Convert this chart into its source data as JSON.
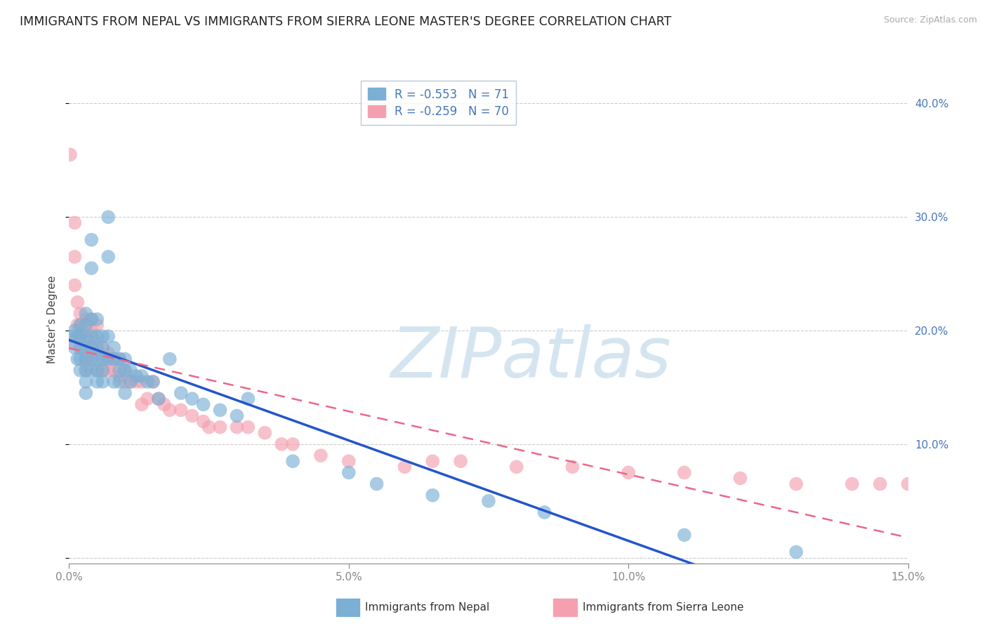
{
  "title": "IMMIGRANTS FROM NEPAL VS IMMIGRANTS FROM SIERRA LEONE MASTER'S DEGREE CORRELATION CHART",
  "source": "Source: ZipAtlas.com",
  "ylabel": "Master's Degree",
  "legend_nepal": "Immigrants from Nepal",
  "legend_sierra": "Immigrants from Sierra Leone",
  "R_nepal": -0.553,
  "N_nepal": 71,
  "R_sierra": -0.259,
  "N_sierra": 70,
  "xlim": [
    0.0,
    0.15
  ],
  "ylim": [
    -0.005,
    0.425
  ],
  "yticks": [
    0.0,
    0.1,
    0.2,
    0.3,
    0.4
  ],
  "ytick_labels": [
    "",
    "10.0%",
    "20.0%",
    "30.0%",
    "40.0%"
  ],
  "xticks": [
    0.0,
    0.05,
    0.1,
    0.15
  ],
  "xtick_labels": [
    "0.0%",
    "5.0%",
    "10.0%",
    "15.0%"
  ],
  "color_nepal": "#7BAFD4",
  "color_sierra": "#F4A0B0",
  "color_trendline_nepal": "#2255CC",
  "color_trendline_sierra": "#EE6688",
  "watermark": "ZIPatlas",
  "watermark_color": "#D5E5F0",
  "title_fontsize": 12.5,
  "axis_label_fontsize": 11,
  "tick_fontsize": 11,
  "nepal_x": [
    0.0005,
    0.001,
    0.001,
    0.0015,
    0.0015,
    0.002,
    0.002,
    0.002,
    0.002,
    0.002,
    0.003,
    0.003,
    0.003,
    0.003,
    0.003,
    0.003,
    0.003,
    0.003,
    0.004,
    0.004,
    0.004,
    0.004,
    0.004,
    0.004,
    0.004,
    0.005,
    0.005,
    0.005,
    0.005,
    0.005,
    0.005,
    0.006,
    0.006,
    0.006,
    0.006,
    0.006,
    0.007,
    0.007,
    0.007,
    0.007,
    0.008,
    0.008,
    0.008,
    0.009,
    0.009,
    0.009,
    0.01,
    0.01,
    0.01,
    0.011,
    0.011,
    0.012,
    0.013,
    0.014,
    0.015,
    0.016,
    0.018,
    0.02,
    0.022,
    0.024,
    0.027,
    0.03,
    0.032,
    0.04,
    0.05,
    0.055,
    0.065,
    0.075,
    0.085,
    0.11,
    0.13
  ],
  "nepal_y": [
    0.195,
    0.2,
    0.185,
    0.195,
    0.175,
    0.205,
    0.195,
    0.185,
    0.175,
    0.165,
    0.215,
    0.205,
    0.195,
    0.185,
    0.175,
    0.165,
    0.155,
    0.145,
    0.28,
    0.255,
    0.21,
    0.195,
    0.185,
    0.175,
    0.165,
    0.21,
    0.195,
    0.185,
    0.175,
    0.165,
    0.155,
    0.195,
    0.185,
    0.175,
    0.165,
    0.155,
    0.3,
    0.265,
    0.195,
    0.175,
    0.185,
    0.175,
    0.155,
    0.175,
    0.165,
    0.155,
    0.175,
    0.165,
    0.145,
    0.165,
    0.155,
    0.16,
    0.16,
    0.155,
    0.155,
    0.14,
    0.175,
    0.145,
    0.14,
    0.135,
    0.13,
    0.125,
    0.14,
    0.085,
    0.075,
    0.065,
    0.055,
    0.05,
    0.04,
    0.02,
    0.005
  ],
  "sierra_x": [
    0.0002,
    0.0005,
    0.001,
    0.001,
    0.001,
    0.0015,
    0.0015,
    0.002,
    0.002,
    0.002,
    0.002,
    0.003,
    0.003,
    0.003,
    0.003,
    0.003,
    0.003,
    0.004,
    0.004,
    0.004,
    0.004,
    0.005,
    0.005,
    0.005,
    0.005,
    0.006,
    0.006,
    0.006,
    0.007,
    0.007,
    0.007,
    0.008,
    0.008,
    0.009,
    0.009,
    0.01,
    0.01,
    0.011,
    0.012,
    0.013,
    0.013,
    0.014,
    0.015,
    0.016,
    0.017,
    0.018,
    0.02,
    0.022,
    0.024,
    0.025,
    0.027,
    0.03,
    0.032,
    0.035,
    0.038,
    0.04,
    0.045,
    0.05,
    0.06,
    0.065,
    0.07,
    0.08,
    0.09,
    0.1,
    0.11,
    0.12,
    0.13,
    0.14,
    0.145,
    0.15
  ],
  "sierra_y": [
    0.355,
    0.19,
    0.295,
    0.265,
    0.24,
    0.225,
    0.205,
    0.215,
    0.205,
    0.195,
    0.185,
    0.21,
    0.2,
    0.19,
    0.185,
    0.175,
    0.165,
    0.21,
    0.2,
    0.185,
    0.175,
    0.205,
    0.19,
    0.18,
    0.165,
    0.185,
    0.175,
    0.165,
    0.18,
    0.175,
    0.165,
    0.175,
    0.165,
    0.175,
    0.16,
    0.165,
    0.155,
    0.155,
    0.155,
    0.155,
    0.135,
    0.14,
    0.155,
    0.14,
    0.135,
    0.13,
    0.13,
    0.125,
    0.12,
    0.115,
    0.115,
    0.115,
    0.115,
    0.11,
    0.1,
    0.1,
    0.09,
    0.085,
    0.08,
    0.085,
    0.085,
    0.08,
    0.08,
    0.075,
    0.075,
    0.07,
    0.065,
    0.065,
    0.065,
    0.065
  ]
}
